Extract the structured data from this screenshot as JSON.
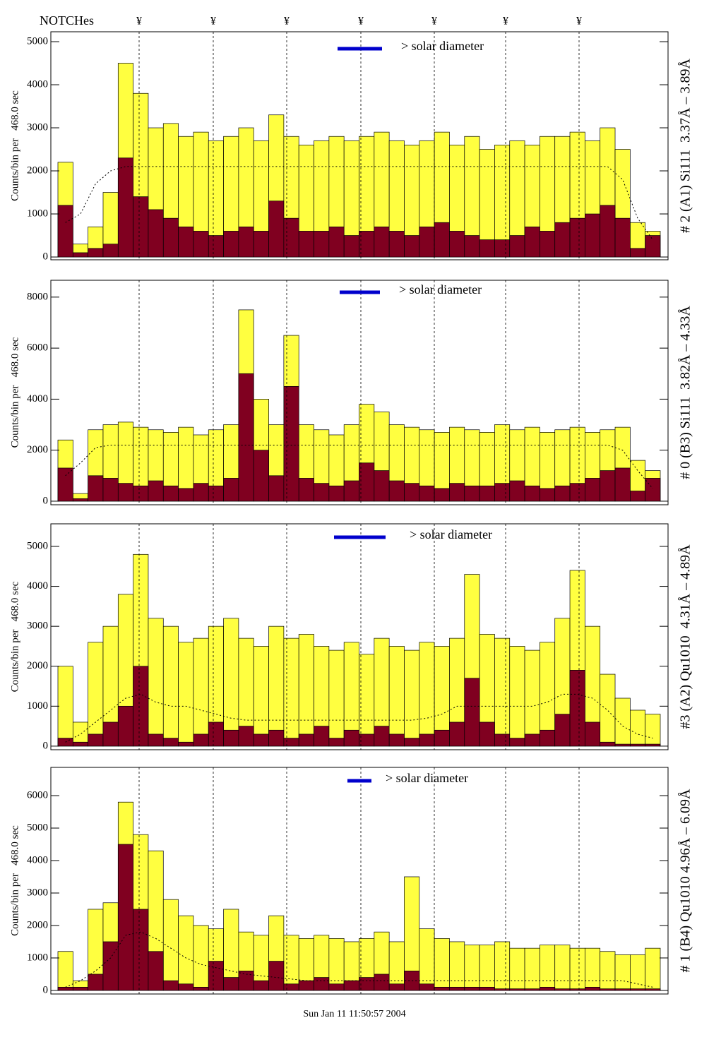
{
  "notches": {
    "label": "NOTCHes",
    "marks": [
      "¥",
      "¥",
      "¥",
      "¥",
      "¥",
      "¥",
      "¥"
    ]
  },
  "footer": "Sun Jan 11 11:50:57 2004",
  "chart_data": [
    {
      "type": "bar",
      "title": "# 2 (A1) Si111  3.37Å – 3.89Å",
      "y_label": "Counts/bin per   468.0 sec",
      "annotation": "> solar diameter",
      "series": [
        {
          "color": "#ffff40",
          "values": [
            2200,
            300,
            700,
            1500,
            4500,
            3800,
            3000,
            3100,
            2800,
            2900,
            2700,
            2800,
            3000,
            2700,
            3300,
            2800,
            2600,
            2700,
            2800,
            2700,
            2800,
            2900,
            2700,
            2600,
            2700,
            2900,
            2600,
            2800,
            2500,
            2600,
            2700,
            2600,
            2800,
            2800,
            2900,
            2700,
            3000,
            2500,
            800,
            600
          ]
        },
        {
          "color": "#800020",
          "values": [
            1200,
            100,
            200,
            300,
            2300,
            1400,
            1100,
            900,
            700,
            600,
            500,
            600,
            700,
            600,
            1300,
            900,
            600,
            600,
            700,
            500,
            600,
            700,
            600,
            500,
            700,
            800,
            600,
            500,
            400,
            400,
            500,
            700,
            600,
            800,
            900,
            1000,
            1200,
            900,
            200,
            500
          ]
        },
        {
          "type": "line",
          "color": "#000000",
          "values": [
            800,
            1000,
            1700,
            2000,
            2100,
            2100,
            2100,
            2100,
            2100,
            2100,
            2100,
            2100,
            2100,
            2100,
            2100,
            2100,
            2100,
            2100,
            2100,
            2100,
            2100,
            2100,
            2100,
            2100,
            2100,
            2100,
            2100,
            2100,
            2100,
            2100,
            2100,
            2100,
            2100,
            2100,
            2100,
            2100,
            2100,
            1800,
            900,
            400
          ]
        }
      ],
      "ylim": [
        -65,
        5230
      ],
      "yticks": [
        0,
        1000,
        2000,
        3000,
        4000,
        5000
      ]
    },
    {
      "type": "bar",
      "title": "# 0 (B3) Si111  3.82Å – 4.33Å",
      "y_label": "Counts/bin per   468.0 sec",
      "annotation": "> solar diameter",
      "series": [
        {
          "color": "#ffff40",
          "values": [
            2400,
            300,
            2800,
            3000,
            3100,
            2900,
            2800,
            2700,
            2900,
            2600,
            2800,
            3000,
            7500,
            4000,
            3000,
            6500,
            3000,
            2800,
            2600,
            3000,
            3800,
            3500,
            3000,
            2900,
            2800,
            2700,
            2900,
            2800,
            2700,
            3000,
            2800,
            2900,
            2700,
            2800,
            2900,
            2700,
            2800,
            2900,
            1600,
            1200
          ]
        },
        {
          "color": "#800020",
          "values": [
            1300,
            100,
            1000,
            900,
            700,
            600,
            800,
            600,
            500,
            700,
            600,
            900,
            5000,
            2000,
            1000,
            4500,
            900,
            700,
            600,
            800,
            1500,
            1200,
            800,
            700,
            600,
            500,
            700,
            600,
            600,
            700,
            800,
            600,
            500,
            600,
            700,
            900,
            1200,
            1300,
            400,
            900
          ]
        },
        {
          "type": "line",
          "color": "#000000",
          "values": [
            1000,
            1500,
            2100,
            2200,
            2200,
            2200,
            2200,
            2200,
            2200,
            2200,
            2200,
            2200,
            2200,
            2200,
            2200,
            2200,
            2200,
            2200,
            2200,
            2200,
            2200,
            2200,
            2200,
            2200,
            2200,
            2200,
            2200,
            2200,
            2200,
            2200,
            2200,
            2200,
            2200,
            2200,
            2200,
            2200,
            2200,
            2000,
            1200,
            500
          ]
        }
      ],
      "ylim": [
        -140,
        8660
      ],
      "yticks": [
        0,
        2000,
        4000,
        6000,
        8000
      ]
    },
    {
      "type": "bar",
      "title": "#3 (A2) Qu1010  4.31Å – 4.89Å",
      "y_label": "Counts/bin per   468.0 sec",
      "annotation": "> solar diameter",
      "series": [
        {
          "color": "#ffff40",
          "values": [
            2000,
            600,
            2600,
            3000,
            3800,
            4800,
            3200,
            3000,
            2600,
            2700,
            3000,
            3200,
            2700,
            2500,
            3000,
            2700,
            2800,
            2500,
            2400,
            2600,
            2300,
            2700,
            2500,
            2400,
            2600,
            2500,
            2700,
            4300,
            2800,
            2700,
            2500,
            2400,
            2600,
            3200,
            4400,
            3000,
            1800,
            1200,
            900,
            800
          ]
        },
        {
          "color": "#800020",
          "values": [
            200,
            100,
            300,
            600,
            1000,
            2000,
            300,
            200,
            100,
            300,
            600,
            400,
            500,
            300,
            400,
            200,
            300,
            500,
            200,
            400,
            300,
            500,
            300,
            200,
            300,
            400,
            600,
            1700,
            600,
            300,
            200,
            300,
            400,
            800,
            1900,
            600,
            100,
            50,
            50,
            50
          ]
        },
        {
          "type": "line",
          "color": "#000000",
          "values": [
            100,
            300,
            600,
            900,
            1200,
            1300,
            1100,
            1000,
            1000,
            900,
            800,
            700,
            650,
            650,
            650,
            650,
            650,
            650,
            650,
            650,
            650,
            650,
            650,
            650,
            700,
            800,
            1000,
            1000,
            1000,
            1000,
            1000,
            1000,
            1100,
            1300,
            1300,
            1200,
            900,
            500,
            300,
            200
          ]
        }
      ],
      "ylim": [
        -90,
        5565
      ],
      "yticks": [
        0,
        1000,
        2000,
        3000,
        4000,
        5000
      ]
    },
    {
      "type": "bar",
      "title": "# 1 (B4) Qu1010 4.96Å – 6.09Å",
      "y_label": "Counts/bin per   468.0 sec",
      "annotation": "> solar diameter",
      "series": [
        {
          "color": "#ffff40",
          "values": [
            1200,
            300,
            2500,
            2700,
            5800,
            4800,
            4300,
            2800,
            2300,
            2000,
            1900,
            2500,
            1800,
            1700,
            2300,
            1700,
            1600,
            1700,
            1600,
            1500,
            1600,
            1800,
            1500,
            3500,
            1900,
            1600,
            1500,
            1400,
            1400,
            1500,
            1300,
            1300,
            1400,
            1400,
            1300,
            1300,
            1200,
            1100,
            1100,
            1300
          ]
        },
        {
          "color": "#800020",
          "values": [
            100,
            100,
            500,
            1500,
            4500,
            2500,
            1200,
            300,
            200,
            100,
            900,
            400,
            600,
            300,
            900,
            200,
            300,
            400,
            200,
            300,
            400,
            500,
            200,
            600,
            200,
            100,
            100,
            100,
            100,
            50,
            50,
            50,
            100,
            50,
            50,
            100,
            50,
            50,
            50,
            50
          ]
        },
        {
          "type": "line",
          "color": "#000000",
          "values": [
            100,
            300,
            600,
            1000,
            1700,
            1800,
            1600,
            1300,
            1000,
            800,
            700,
            600,
            500,
            450,
            400,
            350,
            300,
            300,
            300,
            300,
            300,
            300,
            300,
            300,
            300,
            300,
            300,
            300,
            300,
            300,
            300,
            300,
            300,
            300,
            300,
            300,
            300,
            300,
            200,
            100
          ]
        }
      ],
      "ylim": [
        -110,
        6870
      ],
      "yticks": [
        0,
        1000,
        2000,
        3000,
        4000,
        5000,
        6000
      ]
    }
  ]
}
